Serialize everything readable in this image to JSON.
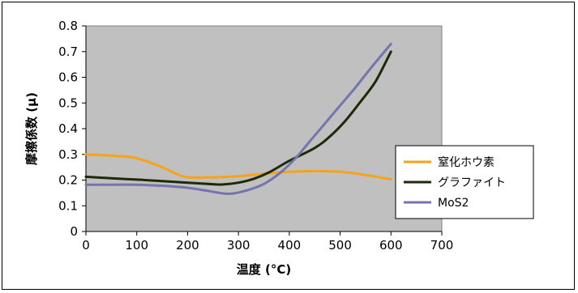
{
  "chart_data": {
    "type": "line",
    "title": "",
    "xlabel": "温度 (°C)",
    "ylabel": "摩擦係数 (μ)",
    "xlim": [
      0,
      700
    ],
    "ylim": [
      0,
      0.8
    ],
    "xticks": [
      0,
      100,
      200,
      300,
      400,
      500,
      600,
      700
    ],
    "yticks": [
      0,
      0.1,
      0.2,
      0.3,
      0.4,
      0.5,
      0.6,
      0.7,
      0.8
    ],
    "grid": false,
    "legend_position": "right",
    "series": [
      {
        "name": "窒化ホウ素",
        "color": "#f7a21b",
        "points": [
          [
            0,
            0.3
          ],
          [
            50,
            0.295
          ],
          [
            100,
            0.285
          ],
          [
            150,
            0.25
          ],
          [
            190,
            0.215
          ],
          [
            230,
            0.21
          ],
          [
            300,
            0.215
          ],
          [
            350,
            0.225
          ],
          [
            400,
            0.232
          ],
          [
            450,
            0.235
          ],
          [
            500,
            0.232
          ],
          [
            550,
            0.22
          ],
          [
            600,
            0.203
          ]
        ]
      },
      {
        "name": "グラファイト",
        "color": "#1c2a08",
        "points": [
          [
            0,
            0.213
          ],
          [
            50,
            0.207
          ],
          [
            100,
            0.202
          ],
          [
            150,
            0.196
          ],
          [
            200,
            0.19
          ],
          [
            250,
            0.184
          ],
          [
            270,
            0.183
          ],
          [
            300,
            0.19
          ],
          [
            330,
            0.205
          ],
          [
            360,
            0.23
          ],
          [
            400,
            0.275
          ],
          [
            450,
            0.325
          ],
          [
            480,
            0.37
          ],
          [
            510,
            0.43
          ],
          [
            540,
            0.505
          ],
          [
            570,
            0.585
          ],
          [
            600,
            0.7
          ]
        ]
      },
      {
        "name": "MoS2",
        "color": "#7474ae",
        "points": [
          [
            0,
            0.182
          ],
          [
            50,
            0.182
          ],
          [
            100,
            0.182
          ],
          [
            150,
            0.178
          ],
          [
            200,
            0.17
          ],
          [
            240,
            0.158
          ],
          [
            270,
            0.148
          ],
          [
            290,
            0.148
          ],
          [
            320,
            0.162
          ],
          [
            350,
            0.185
          ],
          [
            380,
            0.225
          ],
          [
            410,
            0.28
          ],
          [
            440,
            0.35
          ],
          [
            470,
            0.42
          ],
          [
            500,
            0.49
          ],
          [
            530,
            0.56
          ],
          [
            560,
            0.635
          ],
          [
            600,
            0.73
          ]
        ]
      }
    ]
  }
}
